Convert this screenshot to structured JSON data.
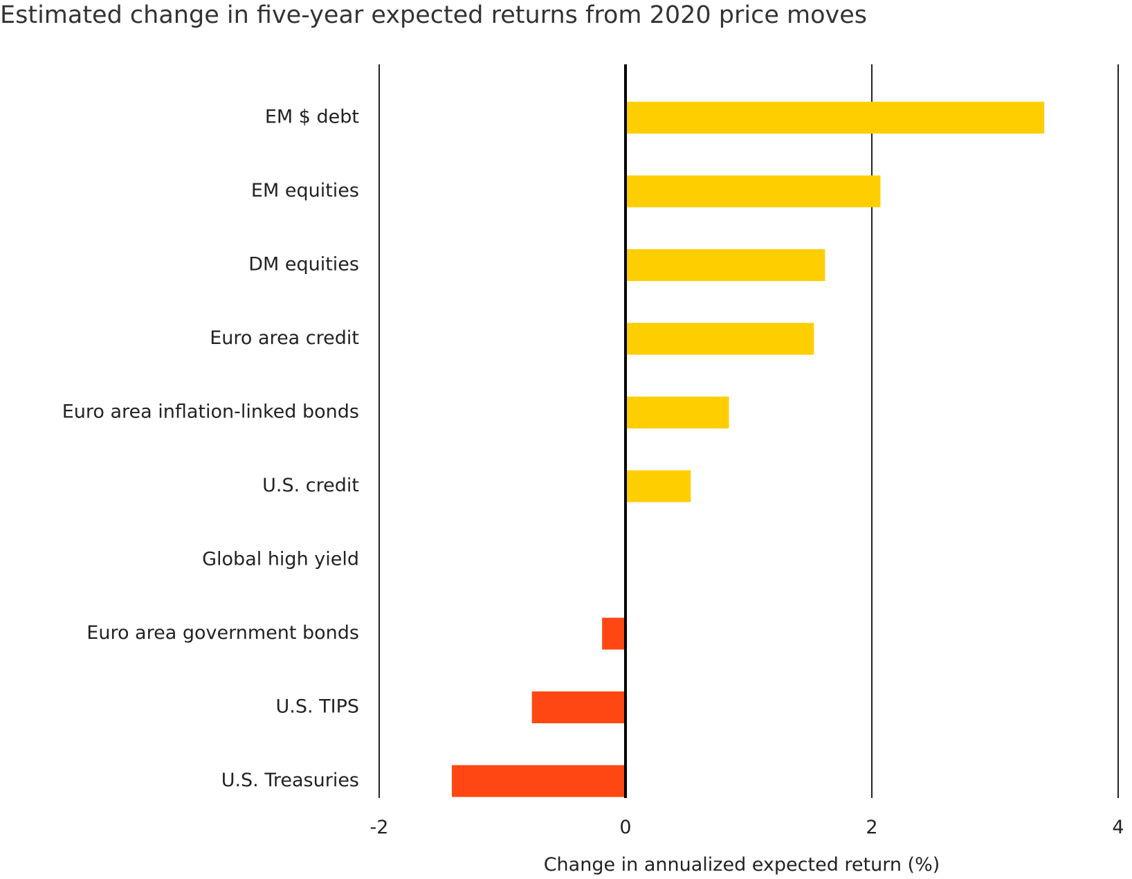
{
  "chart_data": {
    "type": "bar",
    "orientation": "horizontal",
    "title": "Estimated change in five-year expected returns from 2020 price moves",
    "xlabel": "Change in annualized expected return (%)",
    "ylabel": "",
    "xlim": [
      -2,
      4
    ],
    "xticks": [
      -2,
      0,
      2,
      4
    ],
    "xtick_labels": [
      "-2",
      "0",
      "2",
      "4"
    ],
    "grid": "vertical",
    "legend": "none",
    "categories": [
      "EM $ debt",
      "EM equities",
      "DM equities",
      "Euro area credit",
      "Euro area inflation-linked bonds",
      "U.S. credit",
      "Global high yield",
      "Euro area government bonds",
      "U.S. TIPS",
      "U.S. Treasuries"
    ],
    "values": [
      3.4,
      2.07,
      1.62,
      1.53,
      0.84,
      0.53,
      0.0,
      -0.19,
      -0.76,
      -1.41
    ],
    "colors": {
      "positive": "#FFCE00",
      "negative": "#FF4713",
      "gridline": "#222222"
    }
  }
}
